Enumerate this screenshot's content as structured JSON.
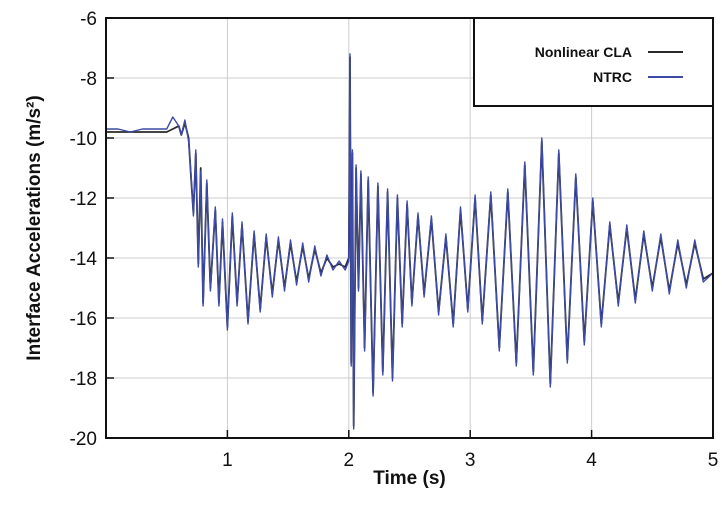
{
  "chart_data": {
    "type": "line",
    "title": "",
    "xlabel": "Time (s)",
    "ylabel": "Interface Accelerations (m/s²)",
    "xlim": [
      0,
      5
    ],
    "ylim": [
      -20,
      -6
    ],
    "xticks": [
      1,
      2,
      3,
      4,
      5
    ],
    "yticks": [
      -6,
      -8,
      -10,
      -12,
      -14,
      -16,
      -18,
      -20
    ],
    "grid": true,
    "legend_position": "top-right",
    "series": [
      {
        "name": "Nonlinear CLA",
        "color": "#2a2a2a",
        "x": [
          0.0,
          0.1,
          0.2,
          0.3,
          0.4,
          0.5,
          0.55,
          0.6,
          0.62,
          0.65,
          0.68,
          0.7,
          0.72,
          0.74,
          0.76,
          0.78,
          0.8,
          0.83,
          0.86,
          0.9,
          0.93,
          0.96,
          1.0,
          1.04,
          1.08,
          1.12,
          1.17,
          1.22,
          1.27,
          1.32,
          1.37,
          1.42,
          1.47,
          1.52,
          1.57,
          1.62,
          1.67,
          1.72,
          1.77,
          1.82,
          1.87,
          1.92,
          1.97,
          2.0,
          2.01,
          2.02,
          2.03,
          2.04,
          2.06,
          2.08,
          2.1,
          2.13,
          2.16,
          2.2,
          2.24,
          2.28,
          2.32,
          2.36,
          2.4,
          2.44,
          2.48,
          2.52,
          2.57,
          2.62,
          2.68,
          2.74,
          2.8,
          2.86,
          2.92,
          2.98,
          3.04,
          3.1,
          3.17,
          3.24,
          3.31,
          3.38,
          3.45,
          3.52,
          3.59,
          3.66,
          3.73,
          3.8,
          3.87,
          3.94,
          4.01,
          4.08,
          4.15,
          4.22,
          4.29,
          4.36,
          4.43,
          4.5,
          4.57,
          4.64,
          4.71,
          4.78,
          4.85,
          4.92,
          5.0
        ],
        "values": [
          -9.8,
          -9.8,
          -9.8,
          -9.8,
          -9.8,
          -9.8,
          -9.7,
          -9.6,
          -9.9,
          -9.5,
          -10.0,
          -11.3,
          -12.5,
          -10.5,
          -14.2,
          -11.0,
          -15.5,
          -11.5,
          -15.0,
          -12.4,
          -15.5,
          -12.8,
          -16.3,
          -12.6,
          -15.5,
          -12.9,
          -16.1,
          -13.2,
          -15.7,
          -13.3,
          -15.2,
          -13.4,
          -15.0,
          -13.5,
          -14.8,
          -13.6,
          -14.7,
          -13.7,
          -14.5,
          -14.0,
          -14.3,
          -14.2,
          -14.3,
          -14.0,
          -7.3,
          -17.5,
          -10.5,
          -19.6,
          -11.0,
          -15.0,
          -11.2,
          -17.0,
          -11.4,
          -18.5,
          -11.6,
          -17.8,
          -11.8,
          -18.0,
          -12.0,
          -16.2,
          -12.2,
          -15.5,
          -12.6,
          -15.2,
          -12.7,
          -15.8,
          -13.3,
          -16.2,
          -12.4,
          -15.7,
          -12.0,
          -16.1,
          -11.9,
          -17.0,
          -11.8,
          -17.5,
          -10.9,
          -17.8,
          -10.1,
          -18.2,
          -10.5,
          -17.4,
          -11.3,
          -16.8,
          -12.1,
          -16.2,
          -12.9,
          -15.5,
          -13.0,
          -15.4,
          -13.2,
          -15.0,
          -13.3,
          -15.1,
          -13.5,
          -14.9,
          -13.5,
          -14.7,
          -14.5
        ]
      },
      {
        "name": "NTRC",
        "color": "#3d4ba6",
        "x": [
          0.0,
          0.1,
          0.2,
          0.3,
          0.4,
          0.5,
          0.55,
          0.6,
          0.62,
          0.65,
          0.68,
          0.7,
          0.72,
          0.74,
          0.76,
          0.78,
          0.8,
          0.83,
          0.86,
          0.9,
          0.93,
          0.96,
          1.0,
          1.04,
          1.08,
          1.12,
          1.17,
          1.22,
          1.27,
          1.32,
          1.37,
          1.42,
          1.47,
          1.52,
          1.57,
          1.62,
          1.67,
          1.72,
          1.77,
          1.82,
          1.87,
          1.92,
          1.97,
          2.0,
          2.01,
          2.02,
          2.03,
          2.04,
          2.06,
          2.08,
          2.1,
          2.13,
          2.16,
          2.2,
          2.24,
          2.28,
          2.32,
          2.36,
          2.4,
          2.44,
          2.48,
          2.52,
          2.57,
          2.62,
          2.68,
          2.74,
          2.8,
          2.86,
          2.92,
          2.98,
          3.04,
          3.1,
          3.17,
          3.24,
          3.31,
          3.38,
          3.45,
          3.52,
          3.59,
          3.66,
          3.73,
          3.8,
          3.87,
          3.94,
          4.01,
          4.08,
          4.15,
          4.22,
          4.29,
          4.36,
          4.43,
          4.5,
          4.57,
          4.64,
          4.71,
          4.78,
          4.85,
          4.92,
          5.0
        ],
        "values": [
          -9.7,
          -9.7,
          -9.8,
          -9.7,
          -9.7,
          -9.7,
          -9.3,
          -9.6,
          -9.9,
          -9.4,
          -10.1,
          -11.2,
          -12.6,
          -10.4,
          -14.3,
          -11.1,
          -15.6,
          -11.4,
          -15.1,
          -12.3,
          -15.6,
          -12.7,
          -16.4,
          -12.5,
          -15.6,
          -12.8,
          -16.2,
          -13.1,
          -15.8,
          -13.2,
          -15.3,
          -13.3,
          -15.1,
          -13.4,
          -14.9,
          -13.5,
          -14.8,
          -13.6,
          -14.6,
          -13.9,
          -14.4,
          -14.1,
          -14.4,
          -14.1,
          -7.2,
          -17.6,
          -10.4,
          -19.7,
          -10.9,
          -15.1,
          -11.1,
          -17.1,
          -11.3,
          -18.6,
          -11.5,
          -17.9,
          -11.7,
          -18.1,
          -11.9,
          -16.3,
          -12.1,
          -15.6,
          -12.5,
          -15.3,
          -12.6,
          -15.9,
          -13.2,
          -16.3,
          -12.3,
          -15.8,
          -11.9,
          -16.2,
          -11.8,
          -17.1,
          -11.7,
          -17.6,
          -10.8,
          -17.9,
          -10.0,
          -18.3,
          -10.4,
          -17.5,
          -11.2,
          -16.9,
          -12.0,
          -16.3,
          -12.8,
          -15.6,
          -12.9,
          -15.5,
          -13.1,
          -15.1,
          -13.2,
          -15.2,
          -13.4,
          -15.0,
          -13.4,
          -14.8,
          -14.5
        ]
      }
    ]
  }
}
